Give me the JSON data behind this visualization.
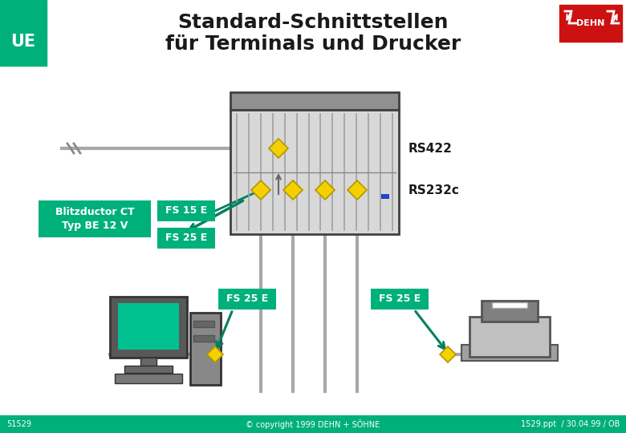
{
  "title_line1": "Standard-Schnittstellen",
  "title_line2": "für Terminals und Drucker",
  "ue_label": "UE",
  "rs422_label": "RS422",
  "rs232c_label": "RS232c",
  "blitz_label1": "Blitzductor CT",
  "blitz_label2": "Typ BE 12 V",
  "fs15e_label": "FS 15 E",
  "fs25e_label": "FS 25 E",
  "copyright": "© copyright 1999 DEHN + SÖHNE",
  "slide_num": "51529",
  "slide_ref": "1529.ppt  / 30.04.99 / OB",
  "bg_color": "#ffffff",
  "ue_green": "#00b07a",
  "teal": "#00b07a",
  "teal_arrow": "#008060",
  "yellow": "#f5d000",
  "yellow_edge": "#b09800",
  "gray_cable": "#a8a8a8",
  "rack_body": "#d8d8d8",
  "rack_lid": "#909090",
  "rack_stripe": "#b0b0b0",
  "rack_edge": "#404040",
  "dehn_red": "#cc1111",
  "footer_bg": "#00b07a",
  "footer_text": "#ffffff",
  "title_color": "#1a1a1a",
  "white": "#ffffff",
  "title_fs": 18,
  "label_fs": 9,
  "small_fs": 7,
  "rs_fs": 11
}
